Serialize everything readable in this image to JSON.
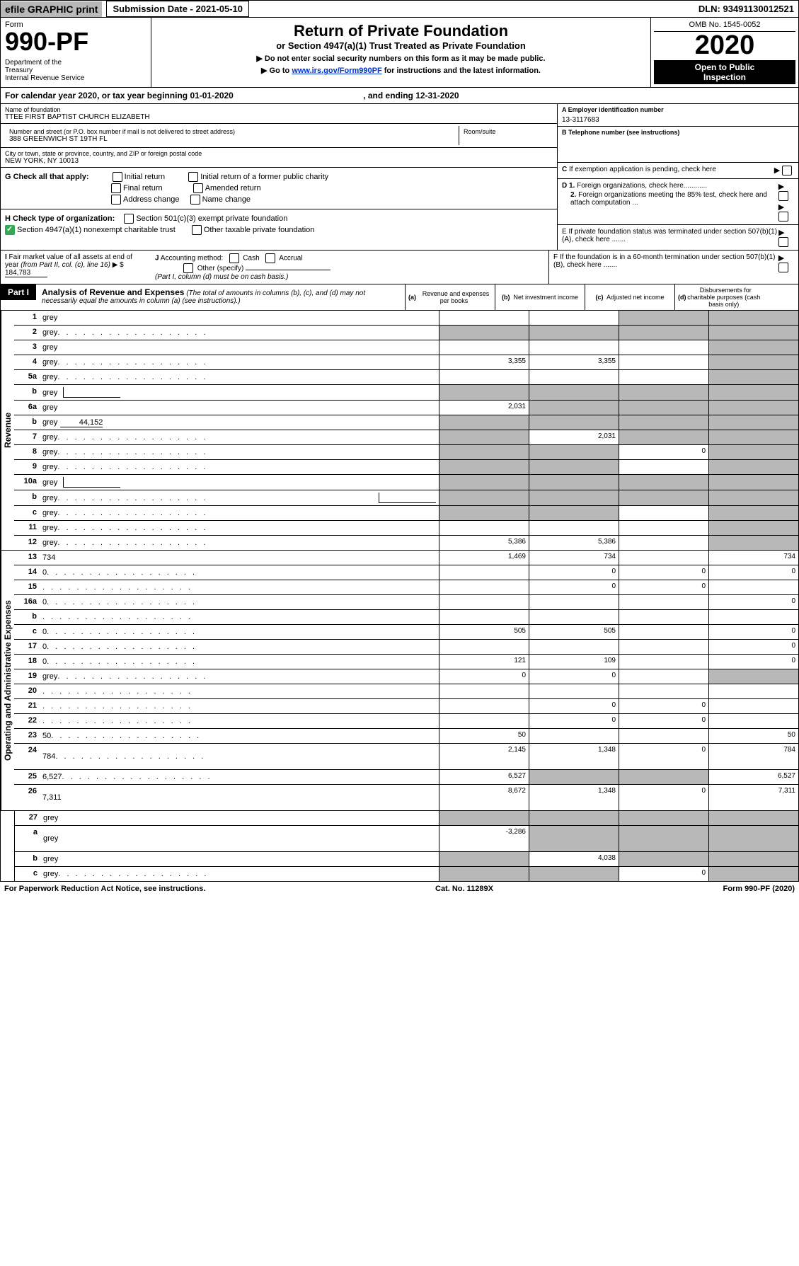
{
  "top": {
    "efile": "efile GRAPHIC print",
    "submission_label": "Submission Date - 2021-05-10",
    "dln": "DLN: 93491130012521"
  },
  "header": {
    "form_label": "Form",
    "form_number": "990-PF",
    "dept": "Department of the Treasury\nInternal Revenue Service",
    "title": "Return of Private Foundation",
    "subtitle": "or Section 4947(a)(1) Trust Treated as Private Foundation",
    "note1": "▶ Do not enter social security numbers on this form as it may be made public.",
    "note2_pre": "▶ Go to ",
    "note2_link": "www.irs.gov/Form990PF",
    "note2_post": " for instructions and the latest information.",
    "omb": "OMB No. 1545-0052",
    "year": "2020",
    "inspection": "Open to Public Inspection"
  },
  "calendar": {
    "text_pre": "For calendar year 2020, or tax year beginning ",
    "begin": "01-01-2020",
    "mid": " , and ending ",
    "end": "12-31-2020"
  },
  "info": {
    "name_label": "Name of foundation",
    "name": "TTEE FIRST BAPTIST CHURCH ELIZABETH",
    "addr_label": "Number and street (or P.O. box number if mail is not delivered to street address)",
    "addr": "388 GREENWICH ST 19TH FL",
    "room_label": "Room/suite",
    "city_label": "City or town, state or province, country, and ZIP or foreign postal code",
    "city": "NEW YORK, NY  10013",
    "ein_label": "A Employer identification number",
    "ein": "13-3117683",
    "phone_label": "B Telephone number (see instructions)",
    "exempt_label": "C If exemption application is pending, check here"
  },
  "checks": {
    "g_label": "G Check all that apply:",
    "g_initial": "Initial return",
    "g_initial_former": "Initial return of a former public charity",
    "g_final": "Final return",
    "g_amended": "Amended return",
    "g_addr": "Address change",
    "g_name": "Name change",
    "h_label": "H Check type of organization:",
    "h_501c3": "Section 501(c)(3) exempt private foundation",
    "h_4947": "Section 4947(a)(1) nonexempt charitable trust",
    "h_other": "Other taxable private foundation",
    "d1": "D 1. Foreign organizations, check here............",
    "d2": "2. Foreign organizations meeting the 85% test, check here and attach computation ...",
    "e": "E  If private foundation status was terminated under section 507(b)(1)(A), check here .......",
    "f": "F  If the foundation is in a 60-month termination under section 507(b)(1)(B), check here .......",
    "i_label": "I Fair market value of all assets at end of year (from Part II, col. (c), line 16) ▶ $",
    "i_value": "184,783",
    "j_label": "J Accounting method:",
    "j_cash": "Cash",
    "j_accrual": "Accrual",
    "j_other": "Other (specify)",
    "j_note": "(Part I, column (d) must be on cash basis.)"
  },
  "part1": {
    "label": "Part I",
    "title": "Analysis of Revenue and Expenses",
    "title_note": " (The total of amounts in columns (b), (c), and (d) may not necessarily equal the amounts in column (a) (see instructions).)",
    "col_a": "(a)   Revenue and expenses per books",
    "col_b": "(b)  Net investment income",
    "col_c": "(c)  Adjusted net income",
    "col_d": "(d)  Disbursements for charitable purposes (cash basis only)",
    "revenue_label": "Revenue",
    "expenses_label": "Operating and Administrative Expenses"
  },
  "rows": [
    {
      "n": "1",
      "d": "grey",
      "a": "",
      "b": "",
      "c": "grey"
    },
    {
      "n": "2",
      "d": "grey",
      "a": "grey",
      "b": "grey",
      "c": "grey",
      "dots": true
    },
    {
      "n": "3",
      "d": "grey",
      "a": "",
      "b": "",
      "c": ""
    },
    {
      "n": "4",
      "d": "grey",
      "a": "3,355",
      "b": "3,355",
      "c": "",
      "dots": true
    },
    {
      "n": "5a",
      "d": "grey",
      "a": "",
      "b": "",
      "c": "",
      "dots": true
    },
    {
      "n": "b",
      "d": "grey",
      "a": "grey",
      "b": "grey",
      "c": "grey",
      "box": true
    },
    {
      "n": "6a",
      "d": "grey",
      "a": "2,031",
      "b": "grey",
      "c": "grey"
    },
    {
      "n": "b",
      "d": "grey",
      "a": "grey",
      "b": "grey",
      "c": "grey",
      "underline": "44,152"
    },
    {
      "n": "7",
      "d": "grey",
      "a": "grey",
      "b": "2,031",
      "c": "grey",
      "dots": true
    },
    {
      "n": "8",
      "d": "grey",
      "a": "grey",
      "b": "grey",
      "c": "0",
      "dots": true
    },
    {
      "n": "9",
      "d": "grey",
      "a": "grey",
      "b": "grey",
      "c": "",
      "dots": true
    },
    {
      "n": "10a",
      "d": "grey",
      "a": "grey",
      "b": "grey",
      "c": "grey",
      "box": true
    },
    {
      "n": "b",
      "d": "grey",
      "a": "grey",
      "b": "grey",
      "c": "grey",
      "box": true,
      "dots": true
    },
    {
      "n": "c",
      "d": "grey",
      "a": "grey",
      "b": "grey",
      "c": "",
      "dots": true
    },
    {
      "n": "11",
      "d": "grey",
      "a": "",
      "b": "",
      "c": "",
      "dots": true
    },
    {
      "n": "12",
      "d": "grey",
      "a": "5,386",
      "b": "5,386",
      "c": "",
      "dots": true
    }
  ],
  "exp_rows": [
    {
      "n": "13",
      "d": "734",
      "a": "1,469",
      "b": "734",
      "c": ""
    },
    {
      "n": "14",
      "d": "0",
      "a": "",
      "b": "0",
      "c": "0",
      "dots": true
    },
    {
      "n": "15",
      "d": "",
      "a": "",
      "b": "0",
      "c": "0",
      "dots": true
    },
    {
      "n": "16a",
      "d": "0",
      "a": "",
      "b": "",
      "c": "",
      "dots": true
    },
    {
      "n": "b",
      "d": "",
      "a": "",
      "b": "",
      "c": "",
      "dots": true
    },
    {
      "n": "c",
      "d": "0",
      "a": "505",
      "b": "505",
      "c": "",
      "dots": true
    },
    {
      "n": "17",
      "d": "0",
      "a": "",
      "b": "",
      "c": "",
      "dots": true
    },
    {
      "n": "18",
      "d": "0",
      "a": "121",
      "b": "109",
      "c": "",
      "dots": true
    },
    {
      "n": "19",
      "d": "grey",
      "a": "0",
      "b": "0",
      "c": "",
      "dots": true
    },
    {
      "n": "20",
      "d": "",
      "a": "",
      "b": "",
      "c": "",
      "dots": true
    },
    {
      "n": "21",
      "d": "",
      "a": "",
      "b": "0",
      "c": "0",
      "dots": true
    },
    {
      "n": "22",
      "d": "",
      "a": "",
      "b": "0",
      "c": "0",
      "dots": true
    },
    {
      "n": "23",
      "d": "50",
      "a": "50",
      "b": "",
      "c": "",
      "dots": true
    },
    {
      "n": "24",
      "d": "784",
      "a": "2,145",
      "b": "1,348",
      "c": "0",
      "dots": true,
      "tall": true
    },
    {
      "n": "25",
      "d": "6,527",
      "a": "6,527",
      "b": "grey",
      "c": "grey",
      "dots": true
    },
    {
      "n": "26",
      "d": "7,311",
      "a": "8,672",
      "b": "1,348",
      "c": "0",
      "tall": true
    }
  ],
  "final_rows": [
    {
      "n": "27",
      "d": "grey",
      "a": "grey",
      "b": "grey",
      "c": "grey"
    },
    {
      "n": "a",
      "d": "grey",
      "a": "-3,286",
      "b": "grey",
      "c": "grey",
      "tall": true
    },
    {
      "n": "b",
      "d": "grey",
      "a": "grey",
      "b": "4,038",
      "c": "grey"
    },
    {
      "n": "c",
      "d": "grey",
      "a": "grey",
      "b": "grey",
      "c": "0",
      "dots": true
    }
  ],
  "footer": {
    "left": "For Paperwork Reduction Act Notice, see instructions.",
    "mid": "Cat. No. 11289X",
    "right": "Form 990-PF (2020)"
  }
}
